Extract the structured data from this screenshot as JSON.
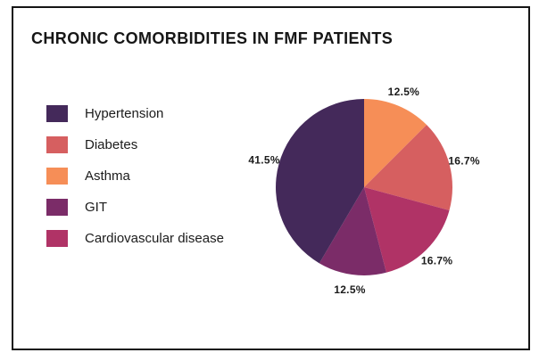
{
  "title": "CHRONIC COMORBIDITIES IN FMF PATIENTS",
  "legend": {
    "items": [
      {
        "label": "Hypertension",
        "color": "#44295A"
      },
      {
        "label": "Diabetes",
        "color": "#D65F60"
      },
      {
        "label": "Asthma",
        "color": "#F68E57"
      },
      {
        "label": "GIT",
        "color": "#7B2C68"
      },
      {
        "label": "Cardiovascular disease",
        "color": "#B03366"
      }
    ]
  },
  "chart_data": {
    "type": "pie",
    "title": "CHRONIC COMORBIDITIES IN FMF PATIENTS",
    "start_angle_deg": 0,
    "direction": "clockwise",
    "legend_position": "left",
    "slices": [
      {
        "label": "Asthma",
        "value_pct": 12.5,
        "data_label": "12.5%",
        "color": "#F68E57"
      },
      {
        "label": "Diabetes",
        "value_pct": 16.7,
        "data_label": "16.7%",
        "color": "#D65F60"
      },
      {
        "label": "Cardiovascular disease",
        "value_pct": 16.7,
        "data_label": "16.7%",
        "color": "#B03366"
      },
      {
        "label": "GIT",
        "value_pct": 12.5,
        "data_label": "12.5%",
        "color": "#7B2C68"
      },
      {
        "label": "Hypertension",
        "value_pct": 41.5,
        "data_label": "41.5%",
        "color": "#44295A"
      }
    ]
  },
  "colors": {
    "frame_border": "#151515",
    "background": "#ffffff",
    "text": "#1b1b1b"
  }
}
